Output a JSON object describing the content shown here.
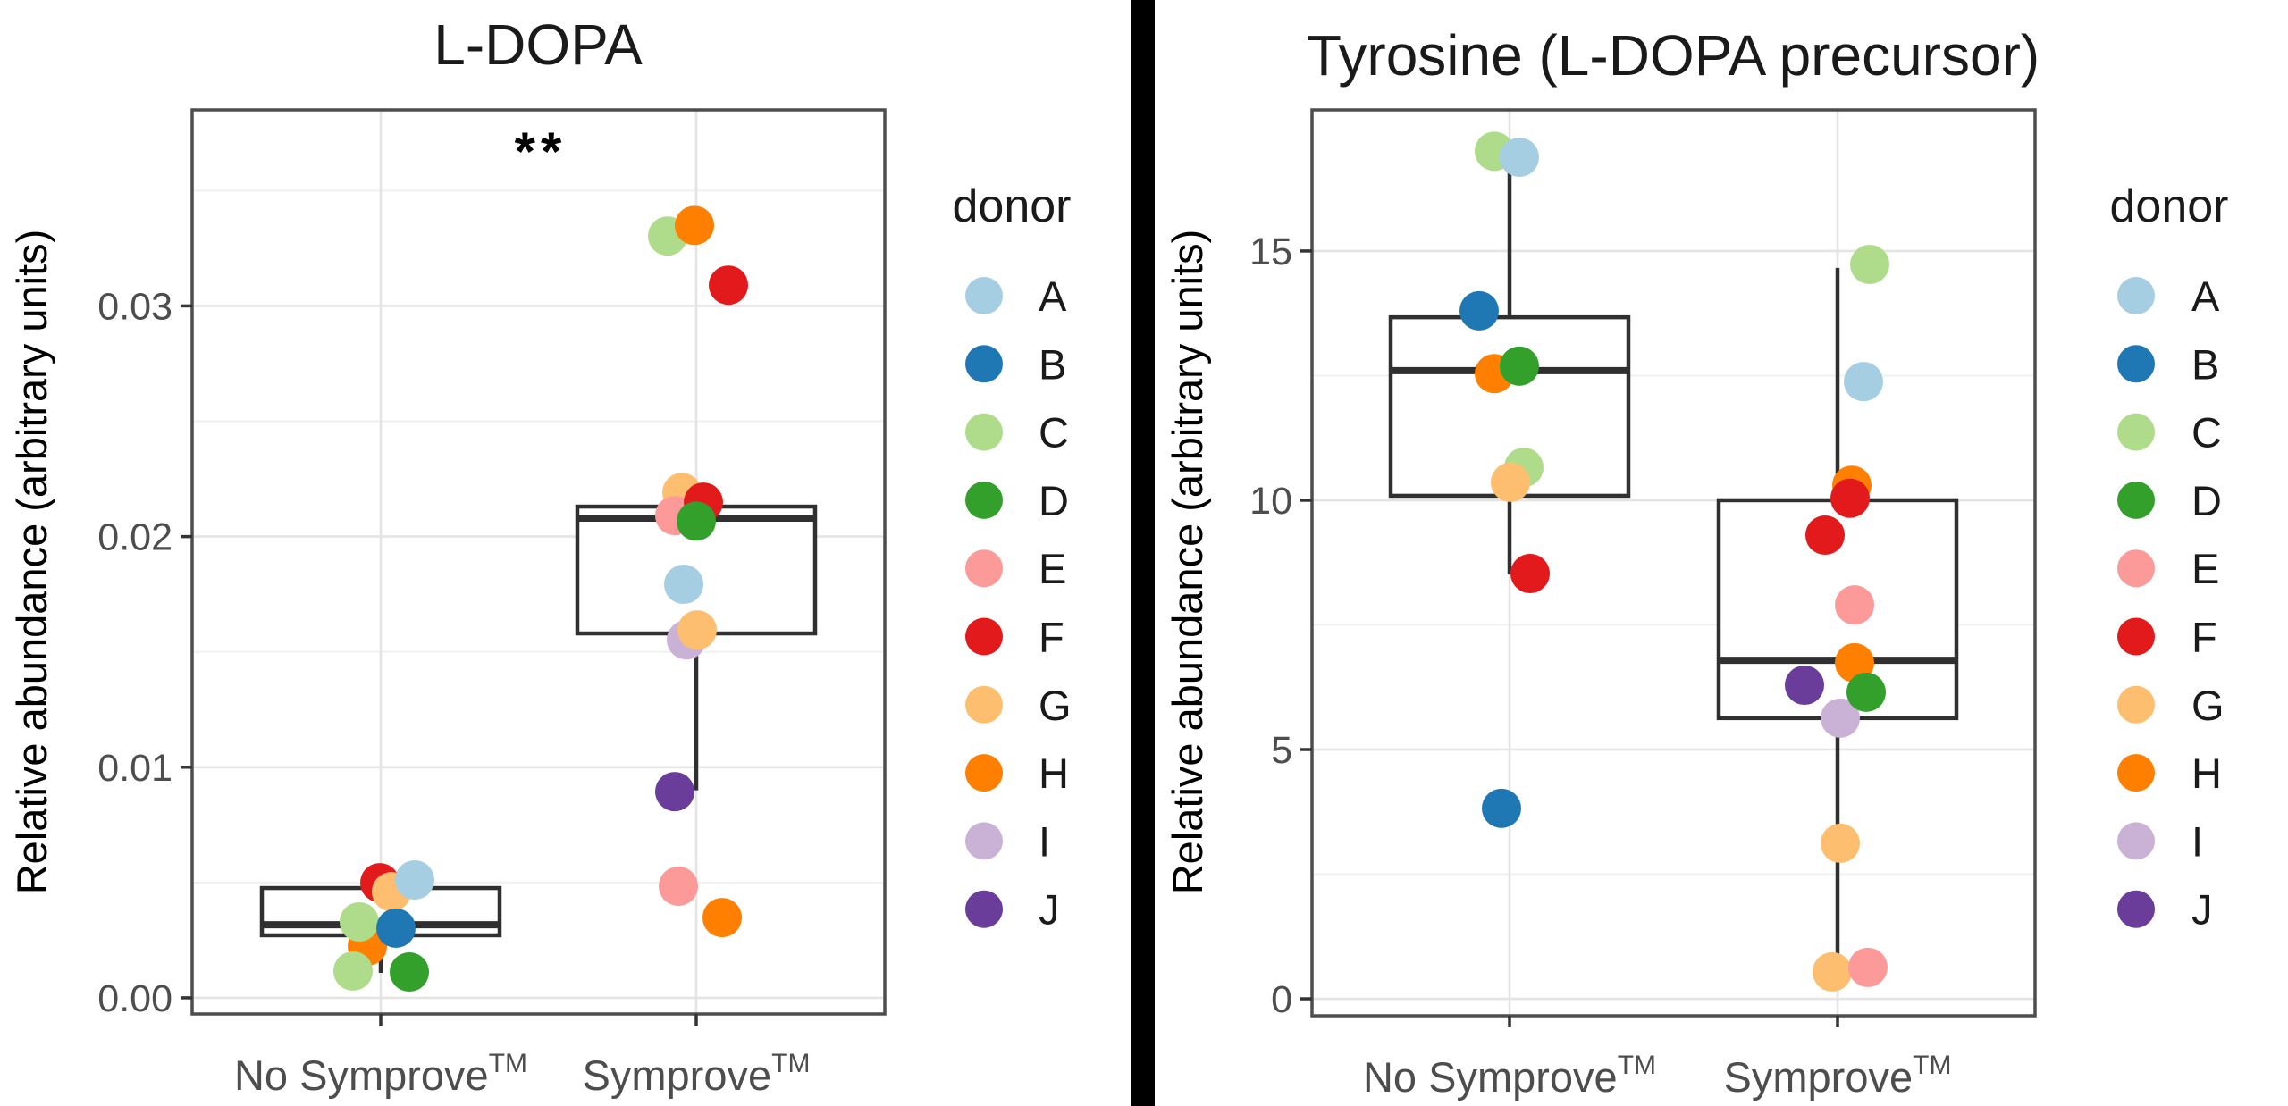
{
  "legend": {
    "title": "donor",
    "entries": [
      {
        "label": "A",
        "color": "#A6CEE3"
      },
      {
        "label": "B",
        "color": "#1F78B4"
      },
      {
        "label": "C",
        "color": "#AEDC8A"
      },
      {
        "label": "D",
        "color": "#33A02C"
      },
      {
        "label": "E",
        "color": "#FB9A99"
      },
      {
        "label": "F",
        "color": "#E31A1C"
      },
      {
        "label": "G",
        "color": "#FDBF6F"
      },
      {
        "label": "H",
        "color": "#FF7F00"
      },
      {
        "label": "I",
        "color": "#CAB2D6"
      },
      {
        "label": "J",
        "color": "#6A3D9A"
      }
    ]
  },
  "chart_data": [
    {
      "id": "ldopa",
      "type": "bar",
      "plot_kind": "boxplot-with-jittered-points",
      "title": "L-DOPA",
      "significance": "**",
      "ylabel": "Relative abundance (arbitrary units)",
      "ylim": [
        -0.0007,
        0.0385
      ],
      "grid": true,
      "y_ticks": [
        {
          "value": 0,
          "label": "0.00"
        },
        {
          "value": 0.01,
          "label": "0.01"
        },
        {
          "value": 0.02,
          "label": "0.02"
        },
        {
          "value": 0.03,
          "label": "0.03"
        }
      ],
      "y_minor": [
        0.005,
        0.015,
        0.025,
        0.035
      ],
      "categories": [
        {
          "label": "No Symprove",
          "sup": "TM"
        },
        {
          "label": "Symprove",
          "sup": "TM"
        }
      ],
      "groups": [
        {
          "category": "No Symprove",
          "box": {
            "q1": 0.00271,
            "median": 0.00317,
            "q3": 0.00476,
            "whisker_low": 0.00108,
            "whisker_high": 0.00476
          },
          "points": [
            {
              "donor": "H",
              "value": 0.00224,
              "dx": -15
            },
            {
              "donor": "F",
              "value": 0.00499,
              "dx": -1
            },
            {
              "donor": "G",
              "value": 0.0046,
              "dx": 12
            },
            {
              "donor": "A",
              "value": 0.00511,
              "dx": 38
            },
            {
              "donor": "C",
              "value": 0.00329,
              "dx": -24
            },
            {
              "donor": "B",
              "value": 0.00302,
              "dx": 17
            },
            {
              "donor": "C",
              "value": 0.00116,
              "dx": -31
            },
            {
              "donor": "D",
              "value": 0.00112,
              "dx": 32
            }
          ]
        },
        {
          "category": "Symprove",
          "box": {
            "q1": 0.0158,
            "median": 0.0208,
            "q3": 0.0213,
            "whisker_low": 0.009,
            "whisker_high": 0.0213
          },
          "points": [
            {
              "donor": "C",
              "value": 0.03303,
              "dx": -32
            },
            {
              "donor": "H",
              "value": 0.03349,
              "dx": -2
            },
            {
              "donor": "F",
              "value": 0.0309,
              "dx": 36
            },
            {
              "donor": "G",
              "value": 0.02191,
              "dx": -16
            },
            {
              "donor": "E",
              "value": 0.02091,
              "dx": -24
            },
            {
              "donor": "F",
              "value": 0.02149,
              "dx": 8
            },
            {
              "donor": "D",
              "value": 0.02067,
              "dx": 0
            },
            {
              "donor": "A",
              "value": 0.01793,
              "dx": -14
            },
            {
              "donor": "I",
              "value": 0.01552,
              "dx": -11
            },
            {
              "donor": "G",
              "value": 0.01595,
              "dx": 1
            },
            {
              "donor": "J",
              "value": 0.00894,
              "dx": -24
            },
            {
              "donor": "E",
              "value": 0.00484,
              "dx": -20
            },
            {
              "donor": "H",
              "value": 0.00348,
              "dx": 29
            }
          ]
        }
      ]
    },
    {
      "id": "tyrosine",
      "type": "bar",
      "plot_kind": "boxplot-with-jittered-points",
      "title": "Tyrosine (L-DOPA precursor)",
      "significance": "",
      "ylabel": "Relative abundance (arbitrary units)",
      "ylim": [
        -0.34,
        17.83
      ],
      "grid": true,
      "y_ticks": [
        {
          "value": 0,
          "label": "0"
        },
        {
          "value": 5,
          "label": "5"
        },
        {
          "value": 10,
          "label": "10"
        },
        {
          "value": 15,
          "label": "15"
        }
      ],
      "y_minor": [
        2.5,
        7.5,
        12.5
      ],
      "categories": [
        {
          "label": "No Symprove",
          "sup": "TM"
        },
        {
          "label": "Symprove",
          "sup": "TM"
        }
      ],
      "groups": [
        {
          "category": "No Symprove",
          "box": {
            "q1": 10.09,
            "median": 12.6,
            "q3": 13.67,
            "whisker_low": 8.51,
            "whisker_high": 16.75
          },
          "points": [
            {
              "donor": "C",
              "value": 17.0,
              "dx": -17
            },
            {
              "donor": "A",
              "value": 16.88,
              "dx": 11
            },
            {
              "donor": "B",
              "value": 13.8,
              "dx": -34
            },
            {
              "donor": "H",
              "value": 12.54,
              "dx": -17
            },
            {
              "donor": "D",
              "value": 12.69,
              "dx": 11
            },
            {
              "donor": "C",
              "value": 10.66,
              "dx": 16
            },
            {
              "donor": "G",
              "value": 10.36,
              "dx": 1
            },
            {
              "donor": "F",
              "value": 8.53,
              "dx": 23
            },
            {
              "donor": "B",
              "value": 3.82,
              "dx": -9
            }
          ]
        },
        {
          "category": "Symprove",
          "box": {
            "q1": 5.63,
            "median": 6.79,
            "q3": 10.0,
            "whisker_low": 0.5,
            "whisker_high": 14.66
          },
          "points": [
            {
              "donor": "C",
              "value": 14.73,
              "dx": 36
            },
            {
              "donor": "A",
              "value": 12.38,
              "dx": 29
            },
            {
              "donor": "H",
              "value": 10.3,
              "dx": 16
            },
            {
              "donor": "F",
              "value": 10.04,
              "dx": 14
            },
            {
              "donor": "F",
              "value": 9.3,
              "dx": -14
            },
            {
              "donor": "E",
              "value": 7.9,
              "dx": 19
            },
            {
              "donor": "H",
              "value": 6.74,
              "dx": 19
            },
            {
              "donor": "J",
              "value": 6.29,
              "dx": -37
            },
            {
              "donor": "I",
              "value": 5.63,
              "dx": 3
            },
            {
              "donor": "D",
              "value": 6.15,
              "dx": 32
            },
            {
              "donor": "G",
              "value": 3.12,
              "dx": 3
            },
            {
              "donor": "G",
              "value": 0.54,
              "dx": -6
            },
            {
              "donor": "E",
              "value": 0.63,
              "dx": 34
            }
          ]
        }
      ]
    }
  ]
}
